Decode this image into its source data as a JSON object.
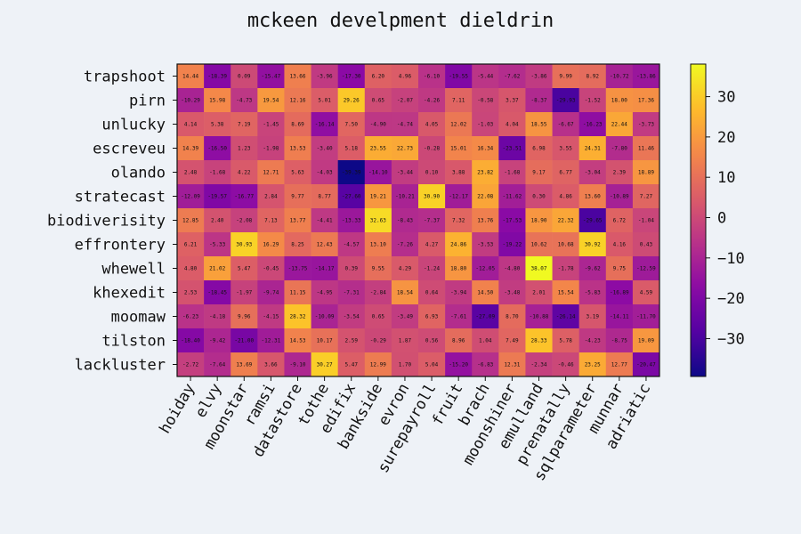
{
  "chart_data": {
    "type": "heatmap",
    "title": "mckeen develpment dieldrin",
    "x_categories": [
      "hoiday",
      "elvy",
      "moonstar",
      "ramsi",
      "datastore",
      "tothe",
      "edifix",
      "bankside",
      "evron",
      "surepayroll",
      "fruit",
      "brach",
      "moonshiner",
      "emulland",
      "prenatally",
      "sqlparameter",
      "munnar",
      "adriatic"
    ],
    "y_categories": [
      "trapshoot",
      "pirn",
      "unlucky",
      "escreveu",
      "olando",
      "stratecast",
      "biodiverisity",
      "effrontery",
      "whewell",
      "khexedit",
      "moomaw",
      "tilston",
      "lackluster"
    ],
    "values": [
      [
        14.44,
        -18.39,
        0.09,
        -15.47,
        13.66,
        -3.96,
        -17.3,
        6.2,
        4.96,
        -6.1,
        -19.55,
        -5.44,
        -7.62,
        -3.86,
        9.99,
        8.92,
        -10.72,
        -13.86
      ],
      [
        -10.29,
        15.98,
        -4.73,
        19.54,
        12.16,
        5.01,
        29.26,
        0.65,
        -2.07,
        -4.26,
        7.11,
        -0.58,
        3.37,
        -8.37,
        -29.93,
        -1.52,
        18.0,
        17.36
      ],
      [
        4.14,
        5.38,
        7.19,
        -1.45,
        8.69,
        -16.14,
        7.5,
        -4.9,
        -4.74,
        4.05,
        12.02,
        -1.03,
        4.04,
        18.55,
        -6.67,
        -16.23,
        22.44,
        -3.73
      ],
      [
        14.39,
        -16.5,
        1.23,
        -1.98,
        13.53,
        -3.4,
        5.18,
        23.55,
        22.73,
        -0.28,
        15.01,
        16.34,
        -23.51,
        6.98,
        3.55,
        24.31,
        -7.8,
        11.46
      ],
      [
        2.48,
        -1.68,
        4.22,
        12.71,
        5.63,
        -4.03,
        -39.39,
        -14.1,
        -3.44,
        0.1,
        3.88,
        23.82,
        -1.68,
        9.17,
        6.77,
        -3.04,
        2.39,
        18.89
      ],
      [
        -12.09,
        -19.57,
        -16.77,
        2.84,
        9.77,
        8.77,
        -27.6,
        19.21,
        -10.21,
        30.9,
        -12.17,
        22.08,
        -11.62,
        0.3,
        4.86,
        13.6,
        -10.89,
        7.27
      ],
      [
        12.85,
        2.4,
        -2.08,
        7.13,
        13.77,
        -4.41,
        -13.33,
        32.63,
        -8.43,
        -7.37,
        7.32,
        13.76,
        -17.53,
        18.9,
        22.32,
        -29.65,
        6.72,
        -1.04
      ],
      [
        6.21,
        -5.33,
        30.93,
        16.29,
        8.25,
        12.43,
        -4.57,
        13.1,
        -7.26,
        4.27,
        24.86,
        -3.53,
        -19.22,
        10.62,
        10.68,
        30.92,
        4.16,
        0.43
      ],
      [
        4.8,
        21.02,
        5.47,
        -0.45,
        -13.75,
        -14.17,
        0.39,
        9.55,
        4.29,
        -1.24,
        18.8,
        -12.05,
        -4.8,
        38.07,
        -1.78,
        -9.62,
        9.75,
        -12.59
      ],
      [
        2.53,
        -18.45,
        -1.97,
        -9.74,
        11.15,
        -4.95,
        -7.31,
        -2.84,
        18.54,
        0.64,
        -3.94,
        14.5,
        -3.48,
        2.01,
        15.54,
        -5.83,
        -16.89,
        4.59
      ],
      [
        -6.23,
        -4.18,
        9.96,
        -4.15,
        28.32,
        -10.09,
        -3.54,
        0.65,
        -3.49,
        6.93,
        -7.61,
        -27.09,
        8.7,
        -10.88,
        -26.14,
        3.19,
        -14.11,
        -11.7
      ],
      [
        -18.4,
        -9.42,
        -21.0,
        -12.31,
        14.53,
        10.17,
        2.59,
        -0.29,
        1.87,
        0.56,
        8.96,
        1.04,
        7.49,
        28.33,
        5.78,
        -4.23,
        -8.75,
        19.09
      ],
      [
        -2.72,
        -7.64,
        13.69,
        3.66,
        -9.1,
        30.27,
        5.47,
        12.99,
        1.7,
        5.04,
        -15.2,
        -6.83,
        12.31,
        -2.34,
        -0.46,
        23.25,
        12.77,
        -20.47
      ]
    ],
    "value_labels": [
      [
        "14.44",
        "-18.39",
        "0.09",
        "-15.47",
        "13.66",
        "-3.96",
        "-17.30",
        "6.20",
        "4.96",
        "-6.10",
        "-19.55",
        "-5.44",
        "-7.62",
        "-3.86",
        "9.99",
        "8.92",
        "-10.72",
        "-13.86"
      ],
      [
        "-10.29",
        "15.98",
        "-4.73",
        "19.54",
        "12.16",
        "5.01",
        "29.26",
        "0.65",
        "-2.07",
        "-4.26",
        "7.11",
        "-0.58",
        "3.37",
        "-8.37",
        "-29.93",
        "-1.52",
        "18.00",
        "17.36"
      ],
      [
        "4.14",
        "5.38",
        "7.19",
        "-1.45",
        "8.69",
        "-16.14",
        "7.50",
        "-4.90",
        "-4.74",
        "4.05",
        "12.02",
        "-1.03",
        "4.04",
        "18.55",
        "-6.67",
        "-16.23",
        "22.44",
        "-3.73"
      ],
      [
        "14.39",
        "-16.50",
        "1.23",
        "-1.98",
        "13.53",
        "-3.40",
        "5.18",
        "23.55",
        "22.73",
        "-0.28",
        "15.01",
        "16.34",
        "-23.51",
        "6.98",
        "3.55",
        "24.31",
        "-7.80",
        "11.46"
      ],
      [
        "2.48",
        "-1.68",
        "4.22",
        "12.71",
        "5.63",
        "-4.03",
        "-39.39",
        "-14.10",
        "-3.44",
        "0.10",
        "3.88",
        "23.82",
        "-1.68",
        "9.17",
        "6.77",
        "-3.04",
        "2.39",
        "18.89"
      ],
      [
        "-12.09",
        "-19.57",
        "-16.77",
        "2.84",
        "9.77",
        "8.77",
        "-27.60",
        "19.21",
        "-10.21",
        "30.90",
        "-12.17",
        "22.08",
        "-11.62",
        "0.30",
        "4.86",
        "13.60",
        "-10.89",
        "7.27"
      ],
      [
        "12.85",
        "2.40",
        "-2.08",
        "7.13",
        "13.77",
        "-4.41",
        "-13.33",
        "32.63",
        "-8.43",
        "-7.37",
        "7.32",
        "13.76",
        "-17.53",
        "18.90",
        "22.32",
        "-29.65",
        "6.72",
        "-1.04"
      ],
      [
        "6.21",
        "-5.33",
        "30.93",
        "16.29",
        "8.25",
        "12.43",
        "-4.57",
        "13.10",
        "-7.26",
        "4.27",
        "24.86",
        "-3.53",
        "-19.22",
        "10.62",
        "10.68",
        "30.92",
        "4.16",
        "0.43"
      ],
      [
        "4.80",
        "21.02",
        "5.47",
        "-0.45",
        "-13.75",
        "-14.17",
        "0.39",
        "9.55",
        "4.29",
        "-1.24",
        "18.80",
        "-12.05",
        "-4.80",
        "38.07",
        "-1.78",
        "-9.62",
        "9.75",
        "-12.59"
      ],
      [
        "2.53",
        "-18.45",
        "-1.97",
        "-9.74",
        "11.15",
        "-4.95",
        "-7.31",
        "-2.84",
        "18.54",
        "0.64",
        "-3.94",
        "14.50",
        "-3.48",
        "2.01",
        "15.54",
        "-5.83",
        "-16.89",
        "4.59"
      ],
      [
        "-6.23",
        "-4.18",
        "9.96",
        "-4.15",
        "28.32",
        "-10.09",
        "-3.54",
        "0.65",
        "-3.49",
        "6.93",
        "-7.61",
        "-27.09",
        "8.70",
        "-10.88",
        "-26.14",
        "3.19",
        "-14.11",
        "-11.70"
      ],
      [
        "-18.40",
        "-9.42",
        "-21.00",
        "-12.31",
        "14.53",
        "10.17",
        "2.59",
        "-0.29",
        "1.87",
        "0.56",
        "8.96",
        "1.04",
        "7.49",
        "28.33",
        "5.78",
        "-4.23",
        "-8.75",
        "19.09"
      ],
      [
        "-2.72",
        "-7.64",
        "13.69",
        "3.66",
        "-9.10",
        "30.27",
        "5.47",
        "12.99",
        "1.70",
        "5.04",
        "-15.20",
        "-6.83",
        "12.31",
        "-2.34",
        "-0.46",
        "23.25",
        "12.77",
        "-20.47"
      ]
    ],
    "colormap": "plasma",
    "color_range": [
      -39.39,
      38.07
    ],
    "colorbar_ticks": [
      30,
      20,
      10,
      0,
      -10,
      -20,
      -30
    ],
    "colorbar_tick_labels": [
      "30",
      "20",
      "10",
      "0",
      "−10",
      "−20",
      "−30"
    ],
    "grid": false,
    "colorbar_placement": "right"
  }
}
